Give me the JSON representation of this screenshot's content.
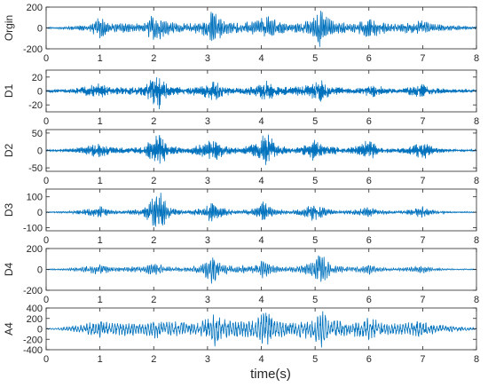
{
  "figure": {
    "xlabel": "time(s)"
  },
  "chart_data": {
    "type": "line",
    "xlabel": "time(s)",
    "xlim": [
      0,
      8
    ],
    "xticks": [
      "0",
      "1",
      "2",
      "3",
      "4",
      "5",
      "6",
      "7",
      "8"
    ],
    "line_color": "#0072BD",
    "grid": false,
    "panels": [
      {
        "ylabel": "Orgin",
        "ylim": [
          -200,
          200
        ],
        "yticks": [
          200,
          0,
          -200
        ],
        "ytick_labels": [
          "200",
          "0",
          "-200"
        ],
        "envelope": [
          [
            0.0,
            8
          ],
          [
            0.3,
            10
          ],
          [
            0.5,
            25
          ],
          [
            0.8,
            30
          ],
          [
            1.0,
            120
          ],
          [
            1.2,
            45
          ],
          [
            1.5,
            50
          ],
          [
            1.8,
            40
          ],
          [
            2.0,
            150
          ],
          [
            2.2,
            90
          ],
          [
            2.5,
            40
          ],
          [
            2.8,
            55
          ],
          [
            3.0,
            100
          ],
          [
            3.1,
            190
          ],
          [
            3.3,
            70
          ],
          [
            3.6,
            50
          ],
          [
            3.9,
            70
          ],
          [
            4.0,
            140
          ],
          [
            4.2,
            100
          ],
          [
            4.5,
            40
          ],
          [
            4.8,
            60
          ],
          [
            5.0,
            120
          ],
          [
            5.1,
            200
          ],
          [
            5.3,
            80
          ],
          [
            5.6,
            45
          ],
          [
            5.8,
            60
          ],
          [
            6.0,
            110
          ],
          [
            6.2,
            70
          ],
          [
            6.5,
            40
          ],
          [
            6.8,
            60
          ],
          [
            7.0,
            75
          ],
          [
            7.2,
            45
          ],
          [
            7.5,
            25
          ],
          [
            8.0,
            15
          ]
        ]
      },
      {
        "ylabel": "D1",
        "ylim": [
          -30,
          30
        ],
        "yticks": [
          20,
          0,
          -20
        ],
        "ytick_labels": [
          "20",
          "0",
          "-20"
        ],
        "envelope": [
          [
            0.0,
            2
          ],
          [
            0.4,
            3
          ],
          [
            0.8,
            8
          ],
          [
            1.0,
            12
          ],
          [
            1.2,
            6
          ],
          [
            1.6,
            6
          ],
          [
            1.8,
            7
          ],
          [
            2.0,
            22
          ],
          [
            2.1,
            28
          ],
          [
            2.3,
            8
          ],
          [
            2.6,
            5
          ],
          [
            2.9,
            8
          ],
          [
            3.1,
            16
          ],
          [
            3.3,
            8
          ],
          [
            3.6,
            4
          ],
          [
            3.9,
            10
          ],
          [
            4.1,
            15
          ],
          [
            4.3,
            8
          ],
          [
            4.6,
            6
          ],
          [
            4.9,
            11
          ],
          [
            5.1,
            18
          ],
          [
            5.3,
            8
          ],
          [
            5.6,
            4
          ],
          [
            5.9,
            6
          ],
          [
            6.1,
            10
          ],
          [
            6.3,
            5
          ],
          [
            6.6,
            3
          ],
          [
            6.9,
            9
          ],
          [
            7.0,
            12
          ],
          [
            7.2,
            5
          ],
          [
            7.5,
            3
          ],
          [
            8.0,
            2
          ]
        ]
      },
      {
        "ylabel": "D2",
        "ylim": [
          -60,
          60
        ],
        "yticks": [
          50,
          0,
          -50
        ],
        "ytick_labels": [
          "50",
          "0",
          "-50"
        ],
        "envelope": [
          [
            0.0,
            3
          ],
          [
            0.4,
            4
          ],
          [
            0.8,
            15
          ],
          [
            1.0,
            22
          ],
          [
            1.2,
            10
          ],
          [
            1.5,
            8
          ],
          [
            1.8,
            12
          ],
          [
            2.0,
            40
          ],
          [
            2.1,
            55
          ],
          [
            2.3,
            15
          ],
          [
            2.6,
            8
          ],
          [
            2.9,
            20
          ],
          [
            3.1,
            38
          ],
          [
            3.3,
            15
          ],
          [
            3.6,
            8
          ],
          [
            3.9,
            22
          ],
          [
            4.0,
            45
          ],
          [
            4.1,
            55
          ],
          [
            4.3,
            15
          ],
          [
            4.6,
            8
          ],
          [
            4.9,
            20
          ],
          [
            5.0,
            40
          ],
          [
            5.2,
            15
          ],
          [
            5.5,
            8
          ],
          [
            5.8,
            14
          ],
          [
            6.0,
            34
          ],
          [
            6.2,
            10
          ],
          [
            6.5,
            5
          ],
          [
            6.8,
            15
          ],
          [
            7.0,
            28
          ],
          [
            7.2,
            10
          ],
          [
            7.5,
            4
          ],
          [
            8.0,
            3
          ]
        ]
      },
      {
        "ylabel": "D3",
        "ylim": [
          -120,
          150
        ],
        "yticks": [
          100,
          0,
          -100
        ],
        "ytick_labels": [
          "100",
          "0",
          "-100"
        ],
        "envelope": [
          [
            0.0,
            4
          ],
          [
            0.4,
            6
          ],
          [
            0.8,
            25
          ],
          [
            1.0,
            40
          ],
          [
            1.2,
            15
          ],
          [
            1.5,
            10
          ],
          [
            1.8,
            30
          ],
          [
            2.0,
            120
          ],
          [
            2.1,
            150
          ],
          [
            2.3,
            30
          ],
          [
            2.6,
            10
          ],
          [
            2.9,
            30
          ],
          [
            3.1,
            70
          ],
          [
            3.3,
            30
          ],
          [
            3.6,
            10
          ],
          [
            3.9,
            30
          ],
          [
            4.0,
            85
          ],
          [
            4.2,
            30
          ],
          [
            4.5,
            10
          ],
          [
            4.8,
            30
          ],
          [
            5.0,
            70
          ],
          [
            5.2,
            25
          ],
          [
            5.5,
            8
          ],
          [
            5.8,
            20
          ],
          [
            6.0,
            40
          ],
          [
            6.2,
            15
          ],
          [
            6.5,
            8
          ],
          [
            6.8,
            20
          ],
          [
            7.0,
            40
          ],
          [
            7.2,
            12
          ],
          [
            7.5,
            5
          ],
          [
            8.0,
            4
          ]
        ]
      },
      {
        "ylabel": "D4",
        "ylim": [
          -200,
          200
        ],
        "yticks": [
          200,
          0,
          -200
        ],
        "ytick_labels": [
          "200",
          "0",
          "-200"
        ],
        "envelope": [
          [
            0.0,
            5
          ],
          [
            0.4,
            10
          ],
          [
            0.8,
            35
          ],
          [
            1.0,
            55
          ],
          [
            1.2,
            25
          ],
          [
            1.5,
            25
          ],
          [
            1.8,
            40
          ],
          [
            2.0,
            70
          ],
          [
            2.2,
            30
          ],
          [
            2.6,
            20
          ],
          [
            2.9,
            45
          ],
          [
            3.1,
            150
          ],
          [
            3.3,
            50
          ],
          [
            3.6,
            35
          ],
          [
            3.9,
            45
          ],
          [
            4.0,
            95
          ],
          [
            4.2,
            40
          ],
          [
            4.5,
            25
          ],
          [
            4.8,
            45
          ],
          [
            5.0,
            90
          ],
          [
            5.1,
            180
          ],
          [
            5.3,
            45
          ],
          [
            5.6,
            25
          ],
          [
            5.9,
            35
          ],
          [
            6.0,
            55
          ],
          [
            6.2,
            20
          ],
          [
            6.5,
            12
          ],
          [
            6.8,
            25
          ],
          [
            7.0,
            40
          ],
          [
            7.2,
            15
          ],
          [
            7.5,
            8
          ],
          [
            8.0,
            5
          ]
        ]
      },
      {
        "ylabel": "A4",
        "ylim": [
          -400,
          400
        ],
        "yticks": [
          400,
          200,
          0,
          -200,
          -400
        ],
        "ytick_labels": [
          "400",
          "200",
          "0",
          "-200",
          "-400"
        ],
        "envelope": [
          [
            0.0,
            10
          ],
          [
            0.3,
            30
          ],
          [
            0.6,
            80
          ],
          [
            0.9,
            150
          ],
          [
            1.0,
            170
          ],
          [
            1.2,
            120
          ],
          [
            1.5,
            150
          ],
          [
            1.8,
            120
          ],
          [
            2.0,
            220
          ],
          [
            2.2,
            140
          ],
          [
            2.5,
            150
          ],
          [
            2.8,
            120
          ],
          [
            3.0,
            200
          ],
          [
            3.1,
            390
          ],
          [
            3.3,
            220
          ],
          [
            3.6,
            160
          ],
          [
            3.9,
            200
          ],
          [
            4.0,
            330
          ],
          [
            4.1,
            390
          ],
          [
            4.3,
            180
          ],
          [
            4.6,
            140
          ],
          [
            4.9,
            220
          ],
          [
            5.0,
            300
          ],
          [
            5.1,
            390
          ],
          [
            5.3,
            200
          ],
          [
            5.6,
            150
          ],
          [
            5.9,
            180
          ],
          [
            6.0,
            240
          ],
          [
            6.2,
            150
          ],
          [
            6.5,
            110
          ],
          [
            6.8,
            140
          ],
          [
            7.0,
            170
          ],
          [
            7.2,
            100
          ],
          [
            7.5,
            60
          ],
          [
            8.0,
            20
          ]
        ]
      }
    ]
  }
}
